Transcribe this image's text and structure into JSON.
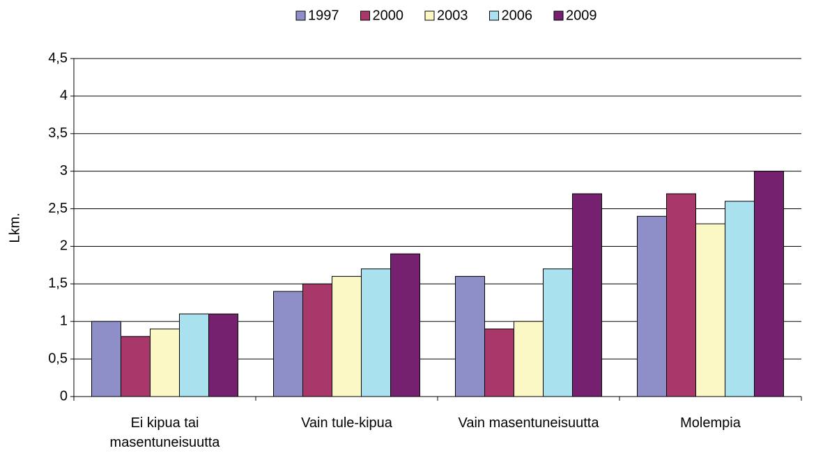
{
  "chart_data": {
    "type": "bar",
    "y_label": "Lkm.",
    "categories": [
      "Ei kipua tai masentuneisuutta",
      "Vain tule-kipua",
      "Vain masentuneisuutta",
      "Molempia"
    ],
    "series": [
      {
        "name": "1997",
        "color": "#8e8fc8",
        "values": [
          1.0,
          1.4,
          1.6,
          2.4
        ]
      },
      {
        "name": "2000",
        "color": "#a8386a",
        "values": [
          0.8,
          1.5,
          0.9,
          2.7
        ]
      },
      {
        "name": "2003",
        "color": "#fbf8c6",
        "values": [
          0.9,
          1.6,
          1.0,
          2.3
        ]
      },
      {
        "name": "2006",
        "color": "#a9e1ee",
        "values": [
          1.1,
          1.7,
          1.7,
          2.6
        ]
      },
      {
        "name": "2009",
        "color": "#75216f",
        "values": [
          1.1,
          1.9,
          2.7,
          3.0
        ]
      }
    ],
    "ylim": [
      0,
      4.5
    ],
    "yticks": [
      0,
      {
        "value": 0.5,
        "label": "0,5"
      },
      1,
      {
        "value": 1.5,
        "label": "1,5"
      },
      2,
      {
        "value": 2.5,
        "label": "2,5"
      },
      3,
      {
        "value": 3.5,
        "label": "3,5"
      },
      4,
      {
        "value": 4.5,
        "label": "4,5"
      }
    ],
    "grid": true,
    "legend": "top"
  }
}
